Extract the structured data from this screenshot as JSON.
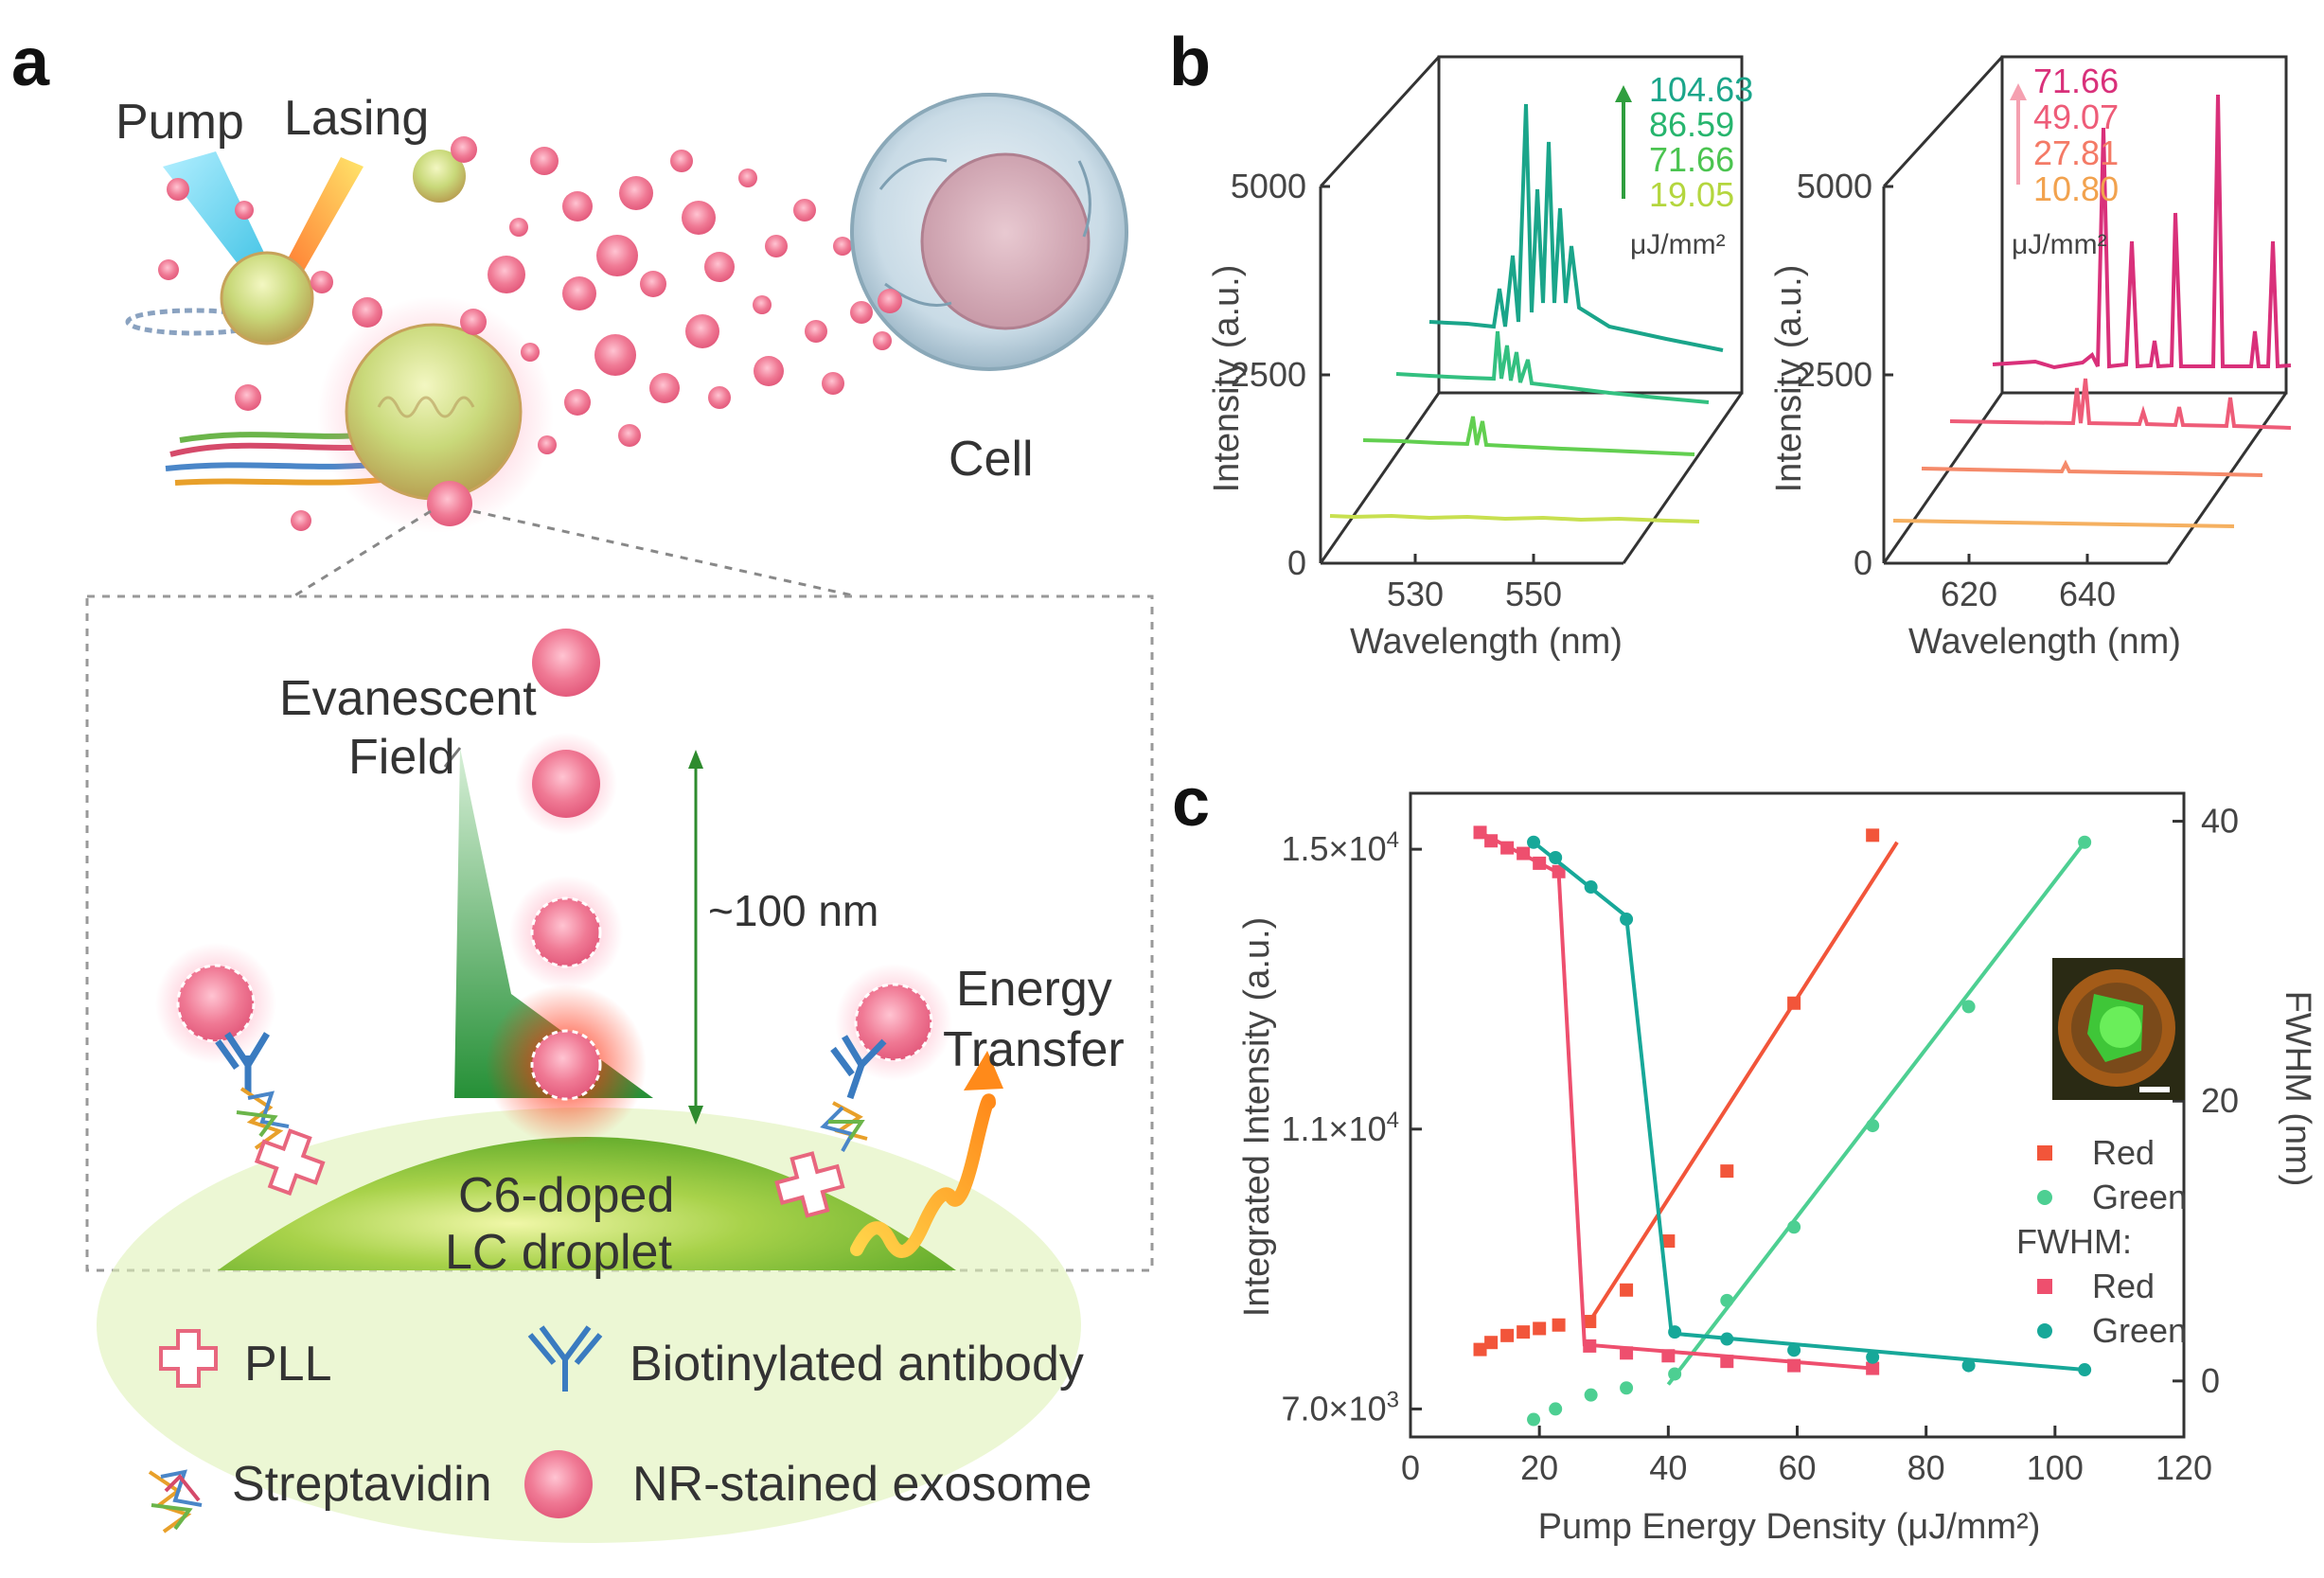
{
  "panel_a": {
    "label": "a",
    "pump": "Pump",
    "lasing": "Lasing",
    "cell": "Cell",
    "evanescent_1": "Evanescent",
    "evanescent_2": "Field",
    "distance": "~100 nm",
    "energy_1": "Energy",
    "energy_2": "Transfer",
    "droplet_1": "C6-doped",
    "droplet_2": "LC droplet",
    "legend": {
      "pll": "PLL",
      "antibody": "Biotinylated antibody",
      "streptavidin": "Streptavidin",
      "exosome": "NR-stained exosome"
    },
    "colors": {
      "exosome": "#f07a95",
      "droplet": "#8cc63f",
      "field": "#2e9e3e",
      "pump_beam": "#38c6e8",
      "lasing_beam": "#ff7a1a"
    }
  },
  "panel_b": {
    "label": "b",
    "green": {
      "ylabel": "Intensity (a.u.)",
      "xlabel": "Wavelength (nm)",
      "yticks": [
        "0",
        "2500",
        "5000"
      ],
      "xticks": [
        "530",
        "550"
      ],
      "legend": [
        "104.63",
        "86.59",
        "71.66",
        "19.05"
      ],
      "unit": "μJ/mm²",
      "colors": [
        "#1aa58a",
        "#2cbf5e",
        "#5fcf50",
        "#bfe04a"
      ]
    },
    "red": {
      "ylabel": "Intensity (a.u.)",
      "xlabel": "Wavelength (nm)",
      "yticks": [
        "0",
        "2500",
        "5000"
      ],
      "xticks": [
        "620",
        "640"
      ],
      "legend": [
        "71.66",
        "49.07",
        "27.81",
        "10.80"
      ],
      "unit": "μJ/mm²",
      "colors": [
        "#d9307a",
        "#ee5c78",
        "#f58a6a",
        "#f7b060"
      ]
    }
  },
  "panel_c": {
    "label": "c",
    "chart_data": {
      "type": "scatter",
      "xlabel": "Pump Energy Density (μJ/mm²)",
      "ylabel": "Integrated Intensity (a.u.)",
      "y2label": "FWHM (nm)",
      "xlim": [
        0,
        120
      ],
      "ylim": [
        6600,
        15800
      ],
      "y2lim": [
        -4,
        42
      ],
      "xticks": [
        "0",
        "20",
        "40",
        "60",
        "80",
        "100",
        "120"
      ],
      "yticks": [
        {
          "value": 7000,
          "mant": "7.0×10",
          "exp": "3"
        },
        {
          "value": 11000,
          "mant": "1.1×10",
          "exp": "4"
        },
        {
          "value": 15000,
          "mant": "1.5×10",
          "exp": "4"
        }
      ],
      "y2ticks": [
        "0",
        "20",
        "40"
      ],
      "series": [
        {
          "name": "Red",
          "axis": "intensity",
          "color": "#f2553a",
          "x": [
            10.8,
            12.5,
            15.0,
            17.5,
            20.0,
            23.0,
            27.8,
            33.5,
            40.0,
            49.1,
            59.5,
            71.7
          ],
          "y": [
            7850,
            7950,
            8050,
            8100,
            8150,
            8200,
            8250,
            8700,
            9400,
            10400,
            12800,
            15200
          ],
          "fit": [
            [
              27.8,
              8250
            ],
            [
              75.5,
              15100
            ]
          ]
        },
        {
          "name": "Green",
          "axis": "intensity",
          "color": "#4dcf92",
          "x": [
            19.1,
            22.5,
            28.0,
            33.5,
            41.0,
            49.1,
            59.5,
            71.7,
            86.6,
            104.6
          ],
          "y": [
            6850,
            7000,
            7200,
            7300,
            7500,
            8550,
            9600,
            11050,
            12750,
            15100
          ],
          "fit": [
            [
              40.0,
              7350
            ],
            [
              104.6,
              15100
            ]
          ]
        },
        {
          "name": "Red",
          "axis": "fwhm",
          "color": "#ee4f6e",
          "x": [
            10.8,
            12.5,
            15.0,
            17.5,
            20.0,
            23.0,
            27.8,
            33.5,
            40.0,
            49.1,
            59.5,
            71.7
          ],
          "y": [
            39.2,
            38.6,
            38.1,
            37.7,
            37.0,
            36.4,
            2.5,
            2.0,
            1.8,
            1.4,
            1.1,
            0.9
          ],
          "fit": [
            [
              10.8,
              39.2
            ],
            [
              23.0,
              36.3
            ],
            [
              27.0,
              2.6
            ],
            [
              71.7,
              0.9
            ]
          ]
        },
        {
          "name": "Green",
          "axis": "fwhm",
          "color": "#17a899",
          "x": [
            19.1,
            22.5,
            28.0,
            33.5,
            41.0,
            49.1,
            59.5,
            71.7,
            86.6,
            104.6
          ],
          "y": [
            38.5,
            37.4,
            35.3,
            33.0,
            3.5,
            3.0,
            2.2,
            1.7,
            1.1,
            0.8
          ],
          "fit": [
            [
              19.1,
              38.5
            ],
            [
              33.5,
              33.2
            ],
            [
              40.5,
              3.4
            ],
            [
              104.6,
              0.8
            ]
          ]
        }
      ],
      "legend_items": [
        {
          "label": "Red",
          "color": "#f2553a",
          "marker": "square"
        },
        {
          "label": "Green",
          "color": "#4dcf92",
          "marker": "circle"
        },
        {
          "label": "FWHM:",
          "color": "",
          "marker": "none"
        },
        {
          "label": "Red",
          "color": "#ee4f6e",
          "marker": "square"
        },
        {
          "label": "Green",
          "color": "#17a899",
          "marker": "circle"
        }
      ]
    }
  }
}
